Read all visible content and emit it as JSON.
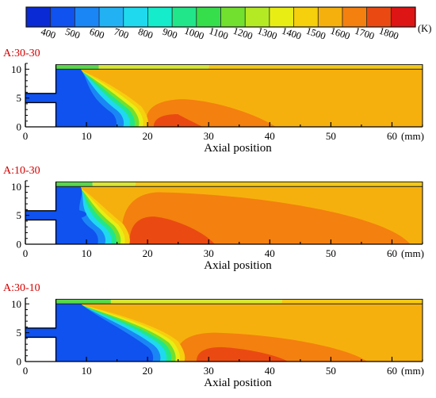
{
  "colorbar": {
    "levels": [
      400,
      500,
      600,
      700,
      800,
      900,
      1000,
      1100,
      1200,
      1300,
      1400,
      1500,
      1600,
      1700,
      1800
    ],
    "unit": "(K)",
    "colors": [
      "#0a2ad6",
      "#0f52ef",
      "#1a86f5",
      "#22b2f4",
      "#1fd9ee",
      "#14eccb",
      "#22e68a",
      "#36de4b",
      "#72e02e",
      "#b4ea24",
      "#e8ee14",
      "#f6cf0d",
      "#f6b00d",
      "#f4800f",
      "#ea4a12",
      "#dd1515"
    ]
  },
  "chart_data": [
    {
      "type": "heatmap",
      "title": "A:30-30",
      "xlabel": "Axial position",
      "x_unit": "(mm)",
      "xlim": [
        0,
        65
      ],
      "ylim": [
        0,
        11
      ],
      "xticks": [
        0,
        10,
        20,
        30,
        40,
        50,
        60
      ],
      "yticks": [
        0,
        5,
        10
      ],
      "background_level": 1550,
      "hot_core": {
        "level": 1700,
        "x_start": 20,
        "x_end": 41,
        "y_top": 4.8
      },
      "hottest": {
        "level": 1750,
        "x_start": 21,
        "x_end": 29,
        "y_top": 2.2
      },
      "cold_zone_x_end": 19,
      "top_strip_green_x_end": 12,
      "top_strip_yellow_x_end": 30
    },
    {
      "type": "heatmap",
      "title": "A:10-30",
      "xlabel": "Axial position",
      "x_unit": "(mm)",
      "xlim": [
        0,
        65
      ],
      "ylim": [
        0,
        11
      ],
      "xticks": [
        0,
        10,
        20,
        30,
        40,
        50,
        60
      ],
      "yticks": [
        0,
        5,
        10
      ],
      "background_level": 1550,
      "hot_core": {
        "level": 1700,
        "x_start": 16,
        "x_end": 63,
        "y_top": 9.0
      },
      "hottest": {
        "level": 1750,
        "x_start": 17,
        "x_end": 31,
        "y_top": 4.8
      },
      "cold_zone_x_end": 16,
      "top_strip_green_x_end": 11,
      "top_strip_yellow_x_end": 18
    },
    {
      "type": "heatmap",
      "title": "A:30-10",
      "xlabel": "Axial position",
      "x_unit": "(mm)",
      "xlim": [
        0,
        65
      ],
      "ylim": [
        0,
        11
      ],
      "xticks": [
        0,
        10,
        20,
        30,
        40,
        50,
        60
      ],
      "yticks": [
        0,
        5,
        10
      ],
      "background_level": 1550,
      "hot_core": {
        "level": 1700,
        "x_start": 25,
        "x_end": 56,
        "y_top": 5.0
      },
      "hottest": {
        "level": 1750,
        "x_start": 28,
        "x_end": 43,
        "y_top": 2.5
      },
      "cold_zone_x_end": 25,
      "top_strip_green_x_end": 14,
      "top_strip_yellow_x_end": 42
    }
  ]
}
